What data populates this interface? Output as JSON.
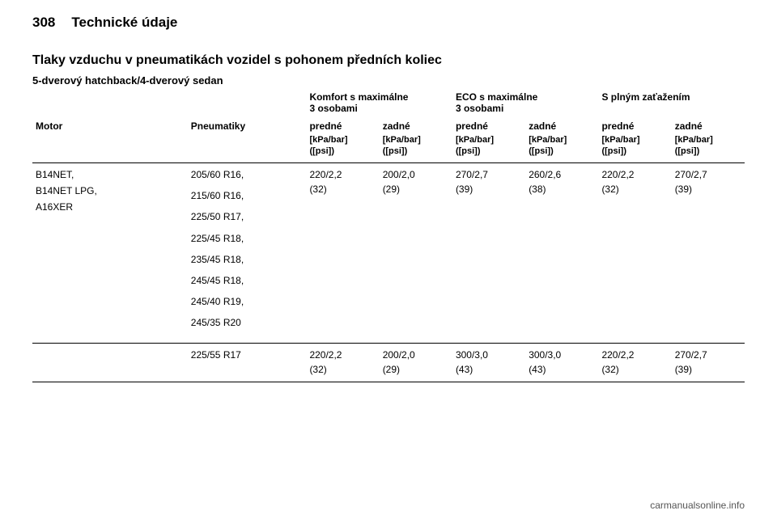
{
  "page": {
    "number": "308",
    "chapter": "Technické údaje"
  },
  "title": "Tlaky vzduchu v pneumatikách vozidel s pohonem předních koliec",
  "subtitle": "5-dverový hatchback/4-dverový sedan",
  "group_headers": {
    "comfort": "Komfort s maximálne\n3 osobami",
    "eco": "ECO s maximálne\n3 osobami",
    "full": "S plným zaťažením"
  },
  "col_labels": {
    "motor": "Motor",
    "tire": "Pneumatiky",
    "front": "predné",
    "rear": "zadné"
  },
  "unit_label": "[kPa/bar]\n([psi])",
  "row1": {
    "engines": [
      "B14NET,",
      "B14NET LPG,",
      "A16XER"
    ],
    "tires": [
      "205/60 R16,",
      "215/60 R16,",
      "225/50 R17,",
      "225/45 R18,",
      "235/45 R18,",
      "245/45 R18,",
      "245/40 R19,",
      "245/35 R20"
    ],
    "values": {
      "comfort_front": [
        "220/2,2",
        "(32)"
      ],
      "comfort_rear": [
        "200/2,0",
        "(29)"
      ],
      "eco_front": [
        "270/2,7",
        "(39)"
      ],
      "eco_rear": [
        "260/2,6",
        "(38)"
      ],
      "full_front": [
        "220/2,2",
        "(32)"
      ],
      "full_rear": [
        "270/2,7",
        "(39)"
      ]
    }
  },
  "row2": {
    "tires": [
      "225/55 R17"
    ],
    "values": {
      "comfort_front": [
        "220/2,2",
        "(32)"
      ],
      "comfort_rear": [
        "200/2,0",
        "(29)"
      ],
      "eco_front": [
        "300/3,0",
        "(43)"
      ],
      "eco_rear": [
        "300/3,0",
        "(43)"
      ],
      "full_front": [
        "220/2,2",
        "(32)"
      ],
      "full_rear": [
        "270/2,7",
        "(39)"
      ]
    }
  },
  "footer": "carmanualsonline.info"
}
